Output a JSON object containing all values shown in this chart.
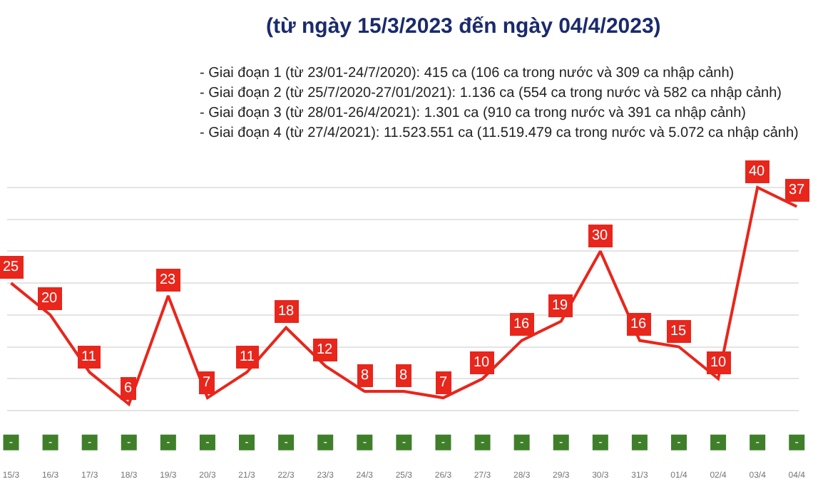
{
  "chart_data": {
    "type": "line",
    "title": "(từ ngày 15/3/2023 đến ngày 04/4/2023)",
    "annotations": [
      "- Giai đoạn 1 (từ 23/01-24/7/2020): 415 ca (106 ca trong nước và 309 ca nhập cảnh)",
      "- Giai đoạn 2 (từ 25/7/2020-27/01/2021): 1.136 ca (554 ca trong nước và 582 ca nhập cảnh)",
      "- Giai đoạn 3 (từ 28/01-26/4/2021): 1.301 ca (910 ca trong nước và 391 ca nhập cảnh)",
      "- Giai đoạn 4 (từ 27/4/2021): 11.523.551 ca (11.519.479 ca trong nước và 5.072 ca nhập cảnh)"
    ],
    "categories": [
      "15/3",
      "16/3",
      "17/3",
      "18/3",
      "19/3",
      "20/3",
      "21/3",
      "22/3",
      "23/3",
      "24/3",
      "25/3",
      "26/3",
      "27/3",
      "28/3",
      "29/3",
      "30/3",
      "31/3",
      "01/4",
      "02/4",
      "03/4",
      "04/4"
    ],
    "series": [
      {
        "color": "#e8261c",
        "values": [
          25,
          20,
          11,
          6,
          23,
          7,
          11,
          18,
          12,
          8,
          8,
          7,
          10,
          16,
          19,
          30,
          16,
          15,
          10,
          40,
          37
        ],
        "value_labels": [
          "25",
          "20",
          "11",
          "6",
          "23",
          "7",
          "11",
          "18",
          "12",
          "8",
          "8",
          "7",
          "10",
          "16",
          "19",
          "30",
          "16",
          "15",
          "10",
          "40",
          "37"
        ]
      },
      {
        "type": "scatter",
        "color": "#3f7f2a",
        "marker": "square",
        "values": [
          0,
          0,
          0,
          0,
          0,
          0,
          0,
          0,
          0,
          0,
          0,
          0,
          0,
          0,
          0,
          0,
          0,
          0,
          0,
          0,
          0
        ],
        "value_labels": [
          "-",
          "-",
          "-",
          "-",
          "-",
          "-",
          "-",
          "-",
          "-",
          "-",
          "-",
          "-",
          "-",
          "-",
          "-",
          "-",
          "-",
          "-",
          "-",
          "-",
          "-"
        ]
      }
    ],
    "yticks": [
      {
        "value": 5,
        "label": null
      },
      {
        "value": 10,
        "label": null
      },
      {
        "value": 15,
        "label": null
      },
      {
        "value": 20,
        "label": null
      },
      {
        "value": 25,
        "label": null
      },
      {
        "value": 30,
        "label": null
      },
      {
        "value": 35,
        "label": null
      },
      {
        "value": 40,
        "label": null
      }
    ],
    "tick_labels": "x",
    "grid": "y",
    "marker": "none",
    "line_style": "solid"
  }
}
